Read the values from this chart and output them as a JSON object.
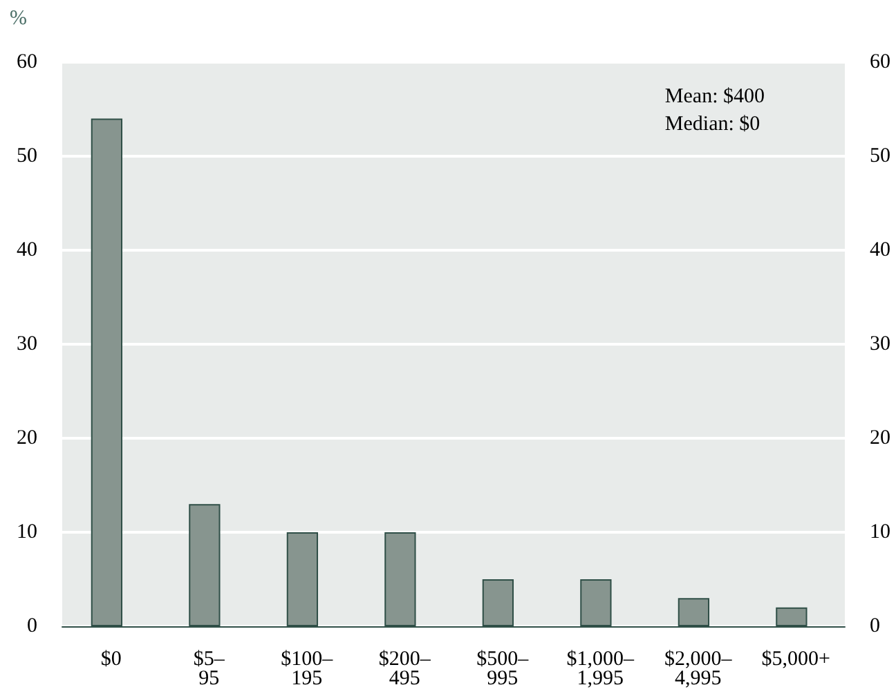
{
  "chart_data": {
    "type": "bar",
    "ylabel": "%",
    "categories": [
      "$0",
      "$5–95",
      "$100–195",
      "$200–495",
      "$500–995",
      "$1,000–1,995",
      "$2,000–4,995",
      "$5,000+"
    ],
    "values": [
      54,
      13,
      10,
      10,
      5,
      5,
      3,
      2
    ],
    "color": "#87958f",
    "ylim": [
      0,
      60
    ],
    "yticks": [
      0,
      10,
      20,
      30,
      40,
      50,
      60
    ],
    "y2lim": [
      0,
      60
    ],
    "y2ticks": [
      0,
      10,
      20,
      30,
      40,
      50,
      60
    ],
    "grid": "y",
    "annotations": [
      "Mean: $400",
      "Median: $0"
    ]
  }
}
